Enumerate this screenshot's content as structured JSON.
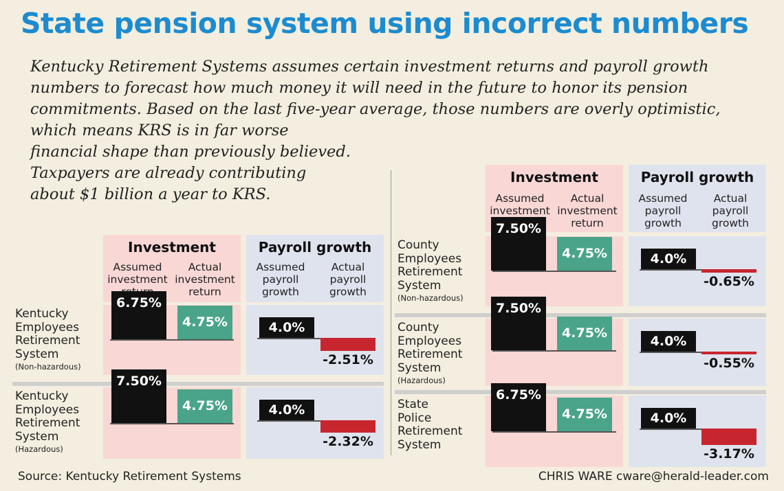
{
  "title": "State pension system using incorrect numbers",
  "intro_lines": [
    "Kentucky Retirement Systems assumes certain investment returns and payroll growth",
    "numbers to forecast how much money it will need in the future to honor its pension",
    "commitments. Based on the last five-year average, those numbers are overly optimistic,",
    "which means KRS is in far worse",
    "financial shape than previously believed.",
    "Taxpayers are already contributing",
    "about $1 billion a year to KRS."
  ],
  "headers": {
    "investment": "Investment return",
    "payroll": "Payroll growth",
    "assumed_investment": [
      "Assumed",
      "investment",
      "return"
    ],
    "actual_investment": [
      "Actual",
      "investment",
      "return"
    ],
    "assumed_payroll": [
      "Assumed",
      "payroll",
      "growth"
    ],
    "actual_payroll": [
      "Actual",
      "payroll",
      "growth"
    ]
  },
  "colors": {
    "title": "#1c8bd0",
    "assumed_bar": "#111111",
    "actual_investment_bar": "#4aa489",
    "negative_payroll_bar": "#c8262e",
    "investment_panel": "#f8d7d5",
    "payroll_panel": "#dfe3ee"
  },
  "chart_data": {
    "type": "bar",
    "title": "State pension system using incorrect numbers",
    "categories": [
      "Kentucky Employees Retirement System (Non-hazardous)",
      "Kentucky Employees Retirement System (Hazardous)",
      "County Employees Retirement System (Non-hazardous)",
      "County Employees Retirement System (Hazardous)",
      "State Police Retirement System"
    ],
    "systems": [
      {
        "name": [
          "Kentucky",
          "Employees",
          "Retirement",
          "System"
        ],
        "note": "(Non-hazardous)",
        "assumed_return": "6.75%",
        "actual_return": "4.75%",
        "assumed_payroll": "4.0%",
        "actual_payroll": "-2.51%"
      },
      {
        "name": [
          "Kentucky",
          "Employees",
          "Retirement",
          "System"
        ],
        "note": "(Hazardous)",
        "assumed_return": "7.50%",
        "actual_return": "4.75%",
        "assumed_payroll": "4.0%",
        "actual_payroll": "-2.32%"
      },
      {
        "name": [
          "County",
          "Employees",
          "Retirement",
          "System"
        ],
        "note": "(Non-hazardous)",
        "assumed_return": "7.50%",
        "actual_return": "4.75%",
        "assumed_payroll": "4.0%",
        "actual_payroll": "-0.65%"
      },
      {
        "name": [
          "County",
          "Employees",
          "Retirement",
          "System"
        ],
        "note": "(Hazardous)",
        "assumed_return": "7.50%",
        "actual_return": "4.75%",
        "assumed_payroll": "4.0%",
        "actual_payroll": "-0.55%"
      },
      {
        "name": [
          "State",
          "Police",
          "Retirement",
          "System"
        ],
        "note": "",
        "assumed_return": "6.75%",
        "actual_return": "4.75%",
        "assumed_payroll": "4.0%",
        "actual_payroll": "-3.17%"
      }
    ],
    "series": [
      {
        "name": "Assumed investment return",
        "values": [
          6.75,
          7.5,
          7.5,
          7.5,
          6.75
        ]
      },
      {
        "name": "Actual investment return",
        "values": [
          4.75,
          4.75,
          4.75,
          4.75,
          4.75
        ]
      },
      {
        "name": "Assumed payroll growth",
        "values": [
          4.0,
          4.0,
          4.0,
          4.0,
          4.0
        ]
      },
      {
        "name": "Actual payroll growth",
        "values": [
          -2.51,
          -2.32,
          -0.65,
          -0.55,
          -3.17
        ]
      }
    ]
  },
  "source": "Source: Kentucky Retirement Systems",
  "credit": "CHRIS WARE cware@herald-leader.com"
}
